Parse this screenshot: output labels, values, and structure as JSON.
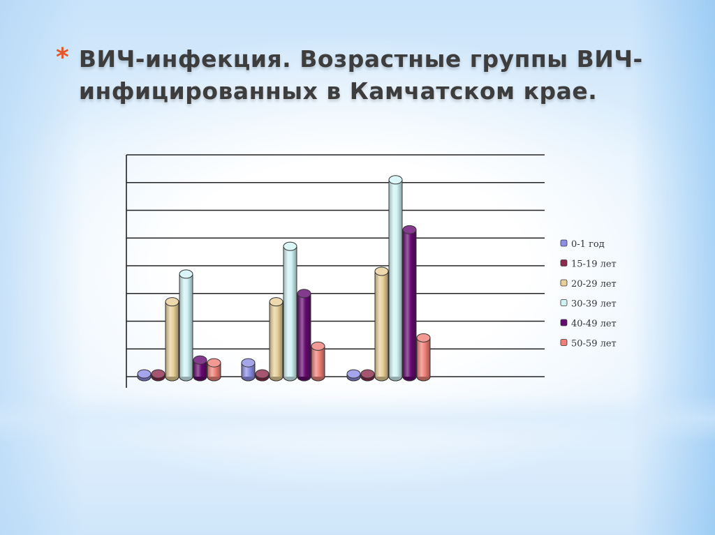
{
  "slide": {
    "bullet": "*",
    "title_line1": "ВИЧ-инфекция. Возрастные группы ВИЧ-",
    "title_line2": "инфицированных в Камчатском крае."
  },
  "chart_data": {
    "type": "bar",
    "style": "3d-cylinder",
    "title": "",
    "xlabel": "",
    "ylabel": "",
    "ylim": [
      0,
      8
    ],
    "grid": true,
    "legend_position": "right",
    "categories": [
      "",
      "",
      ""
    ],
    "series": [
      {
        "name": "0-1 год",
        "color": "#8d8fe6",
        "values": [
          0.1,
          0.5,
          0.1
        ]
      },
      {
        "name": "15-19 лет",
        "color": "#8e2a4c",
        "values": [
          0.1,
          0.1,
          0.1
        ]
      },
      {
        "name": "20-29 лет",
        "color": "#e8cf98",
        "values": [
          2.7,
          2.7,
          3.8
        ]
      },
      {
        "name": "30-39 лет",
        "color": "#d2f4f6",
        "values": [
          3.7,
          4.7,
          7.1
        ]
      },
      {
        "name": "40-49 лет",
        "color": "#650a70",
        "values": [
          0.6,
          3.0,
          5.3
        ]
      },
      {
        "name": "50-59 лет",
        "color": "#f08078",
        "values": [
          0.5,
          1.1,
          1.4
        ]
      }
    ]
  }
}
